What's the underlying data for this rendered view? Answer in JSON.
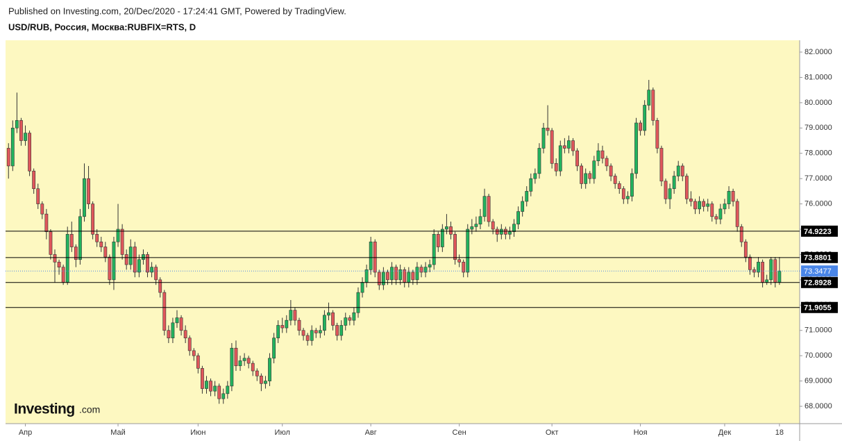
{
  "chart_data": {
    "type": "candlestick",
    "published": "Published on Investing.com, 20/Dec/2020 - 17:24:41 GMT, Powered by TradingView.",
    "title": "USD/RUB, Россия, Москва:RUBFIX=RTS, D",
    "logo": "Investing",
    "logo_suffix": ".com",
    "up_color": "#22b35e",
    "down_color": "#e0575b",
    "background": "#fdf8c1",
    "ylim": [
      67.315,
      82.467
    ],
    "xlim": [
      -0.7,
      187.8
    ],
    "yticks": [
      {
        "value": 68,
        "label": "68.0000"
      },
      {
        "value": 69,
        "label": "69.0000"
      },
      {
        "value": 70,
        "label": "70.0000"
      },
      {
        "value": 71,
        "label": "71.0000"
      },
      {
        "value": 72,
        "label": "72.0000"
      },
      {
        "value": 73,
        "label": "73.0000"
      },
      {
        "value": 74,
        "label": "74.0000"
      },
      {
        "value": 75,
        "label": "75.0000"
      },
      {
        "value": 76,
        "label": "76.0000"
      },
      {
        "value": 77,
        "label": "77.0000"
      },
      {
        "value": 78,
        "label": "78.0000"
      },
      {
        "value": 79,
        "label": "79.0000"
      },
      {
        "value": 80,
        "label": "80.0000"
      },
      {
        "value": 81,
        "label": "81.0000"
      },
      {
        "value": 82,
        "label": "82.0000"
      }
    ],
    "xticks": [
      {
        "value": 4,
        "label": "Апр"
      },
      {
        "value": 26,
        "label": "Май"
      },
      {
        "value": 45,
        "label": "Июн"
      },
      {
        "value": 65,
        "label": "Июл"
      },
      {
        "value": 86,
        "label": "Авг"
      },
      {
        "value": 107,
        "label": "Сен"
      },
      {
        "value": 129,
        "label": "Окт"
      },
      {
        "value": 150,
        "label": "Ноя"
      },
      {
        "value": 170,
        "label": "Дек"
      },
      {
        "value": 183,
        "label": "18"
      }
    ],
    "levels": [
      74.9223,
      73.8801,
      72.8928,
      71.9055
    ],
    "last": 73.3477,
    "last_color": "#4a86e8",
    "candles": [
      [
        78.2,
        78.4,
        77.0,
        77.5
      ],
      [
        77.5,
        79.3,
        77.3,
        79.0
      ],
      [
        79.0,
        80.4,
        78.8,
        79.3
      ],
      [
        79.3,
        79.4,
        78.3,
        78.5
      ],
      [
        78.5,
        79.1,
        78.3,
        78.8
      ],
      [
        78.8,
        78.9,
        77.1,
        77.3
      ],
      [
        77.3,
        77.4,
        76.4,
        76.6
      ],
      [
        76.6,
        76.8,
        75.8,
        76.0
      ],
      [
        76.0,
        76.1,
        75.4,
        75.6
      ],
      [
        75.6,
        75.8,
        74.6,
        74.9
      ],
      [
        74.9,
        75.0,
        73.8,
        74.0
      ],
      [
        74.0,
        74.2,
        72.9,
        73.7
      ],
      [
        73.7,
        73.8,
        73.2,
        73.5
      ],
      [
        73.5,
        73.6,
        72.8,
        72.9
      ],
      [
        72.9,
        75.1,
        72.8,
        74.8
      ],
      [
        74.8,
        75.3,
        74.1,
        74.3
      ],
      [
        74.3,
        74.4,
        73.5,
        73.8
      ],
      [
        73.8,
        75.8,
        73.6,
        75.5
      ],
      [
        75.5,
        77.6,
        75.3,
        77.0
      ],
      [
        77.0,
        77.5,
        75.8,
        76.0
      ],
      [
        76.0,
        76.1,
        74.6,
        74.8
      ],
      [
        74.8,
        75.0,
        74.3,
        74.5
      ],
      [
        74.5,
        74.7,
        74.1,
        74.3
      ],
      [
        74.3,
        74.5,
        73.7,
        73.9
      ],
      [
        73.9,
        74.0,
        72.8,
        73.0
      ],
      [
        73.0,
        74.7,
        72.6,
        74.5
      ],
      [
        74.5,
        76.0,
        74.3,
        75.0
      ],
      [
        75.0,
        75.2,
        73.8,
        74.0
      ],
      [
        74.0,
        74.2,
        73.4,
        73.6
      ],
      [
        73.6,
        74.6,
        73.4,
        74.3
      ],
      [
        74.3,
        74.5,
        73.1,
        73.3
      ],
      [
        73.3,
        74.0,
        73.1,
        73.8
      ],
      [
        73.8,
        74.2,
        73.6,
        74.0
      ],
      [
        74.0,
        74.1,
        73.1,
        73.3
      ],
      [
        73.3,
        73.7,
        73.1,
        73.5
      ],
      [
        73.5,
        73.6,
        72.8,
        73.0
      ],
      [
        73.0,
        73.1,
        72.3,
        72.5
      ],
      [
        72.5,
        72.6,
        70.8,
        71.0
      ],
      [
        71.0,
        71.2,
        70.5,
        70.7
      ],
      [
        70.7,
        71.5,
        70.5,
        71.3
      ],
      [
        71.3,
        71.8,
        71.1,
        71.5
      ],
      [
        71.5,
        71.6,
        70.8,
        71.0
      ],
      [
        71.0,
        71.2,
        70.5,
        70.7
      ],
      [
        70.7,
        70.8,
        70.0,
        70.2
      ],
      [
        70.2,
        70.3,
        69.8,
        70.0
      ],
      [
        70.0,
        70.1,
        69.3,
        69.5
      ],
      [
        69.5,
        69.6,
        68.5,
        68.7
      ],
      [
        68.7,
        69.2,
        68.5,
        69.0
      ],
      [
        69.0,
        69.1,
        68.4,
        68.6
      ],
      [
        68.6,
        69.0,
        68.4,
        68.8
      ],
      [
        68.8,
        68.9,
        68.1,
        68.3
      ],
      [
        68.3,
        68.7,
        68.1,
        68.5
      ],
      [
        68.5,
        69.0,
        68.3,
        68.8
      ],
      [
        68.8,
        70.5,
        68.6,
        70.3
      ],
      [
        70.3,
        70.6,
        69.4,
        69.6
      ],
      [
        69.6,
        70.0,
        69.4,
        69.8
      ],
      [
        69.8,
        70.1,
        69.6,
        69.9
      ],
      [
        69.9,
        70.0,
        69.5,
        69.7
      ],
      [
        69.7,
        69.8,
        69.2,
        69.4
      ],
      [
        69.4,
        69.5,
        69.0,
        69.2
      ],
      [
        69.2,
        69.3,
        68.6,
        68.9
      ],
      [
        68.9,
        69.2,
        68.7,
        69.0
      ],
      [
        69.0,
        70.1,
        68.8,
        69.9
      ],
      [
        69.9,
        70.9,
        69.7,
        70.7
      ],
      [
        70.7,
        71.4,
        70.5,
        71.2
      ],
      [
        71.2,
        71.5,
        70.9,
        71.1
      ],
      [
        71.1,
        71.6,
        70.9,
        71.4
      ],
      [
        71.4,
        72.2,
        71.2,
        71.8
      ],
      [
        71.8,
        71.9,
        71.2,
        71.4
      ],
      [
        71.4,
        71.5,
        70.8,
        71.0
      ],
      [
        71.0,
        71.1,
        70.6,
        70.8
      ],
      [
        70.8,
        70.9,
        70.4,
        70.6
      ],
      [
        70.6,
        71.2,
        70.4,
        71.0
      ],
      [
        71.0,
        71.1,
        70.7,
        70.9
      ],
      [
        70.9,
        71.2,
        70.7,
        71.0
      ],
      [
        71.0,
        71.8,
        70.8,
        71.6
      ],
      [
        71.6,
        72.1,
        71.4,
        71.7
      ],
      [
        71.7,
        71.8,
        71.0,
        71.2
      ],
      [
        71.2,
        71.3,
        70.6,
        70.8
      ],
      [
        70.8,
        71.4,
        70.6,
        71.2
      ],
      [
        71.2,
        71.7,
        71.0,
        71.5
      ],
      [
        71.5,
        71.6,
        71.2,
        71.4
      ],
      [
        71.4,
        71.9,
        71.2,
        71.7
      ],
      [
        71.7,
        72.7,
        71.5,
        72.5
      ],
      [
        72.5,
        73.1,
        72.3,
        72.9
      ],
      [
        72.9,
        73.6,
        72.7,
        73.4
      ],
      [
        73.4,
        74.7,
        73.2,
        74.5
      ],
      [
        74.5,
        74.6,
        73.1,
        73.3
      ],
      [
        73.3,
        73.4,
        72.6,
        72.8
      ],
      [
        72.8,
        73.5,
        72.6,
        73.3
      ],
      [
        73.3,
        73.4,
        72.8,
        73.0
      ],
      [
        73.0,
        73.7,
        72.8,
        73.5
      ],
      [
        73.5,
        73.6,
        72.8,
        73.0
      ],
      [
        73.0,
        73.6,
        72.8,
        73.4
      ],
      [
        73.4,
        73.5,
        72.7,
        72.9
      ],
      [
        72.9,
        73.5,
        72.7,
        73.3
      ],
      [
        73.3,
        73.4,
        72.8,
        73.0
      ],
      [
        73.0,
        73.7,
        72.8,
        73.5
      ],
      [
        73.5,
        73.6,
        73.1,
        73.3
      ],
      [
        73.3,
        73.7,
        73.1,
        73.5
      ],
      [
        73.5,
        73.8,
        73.3,
        73.6
      ],
      [
        73.6,
        75.0,
        73.4,
        74.8
      ],
      [
        74.8,
        74.9,
        74.1,
        74.3
      ],
      [
        74.3,
        75.2,
        74.1,
        75.0
      ],
      [
        75.0,
        75.6,
        74.8,
        75.1
      ],
      [
        75.1,
        75.3,
        74.6,
        74.8
      ],
      [
        74.8,
        74.9,
        73.6,
        73.8
      ],
      [
        73.8,
        74.0,
        73.5,
        73.7
      ],
      [
        73.7,
        73.8,
        73.1,
        73.3
      ],
      [
        73.3,
        75.2,
        73.1,
        75.0
      ],
      [
        75.0,
        75.4,
        74.8,
        75.1
      ],
      [
        75.1,
        75.5,
        74.9,
        75.2
      ],
      [
        75.2,
        75.8,
        75.0,
        75.5
      ],
      [
        75.5,
        76.6,
        75.3,
        76.3
      ],
      [
        76.3,
        76.4,
        75.1,
        75.3
      ],
      [
        75.3,
        75.4,
        74.8,
        75.0
      ],
      [
        75.0,
        75.1,
        74.5,
        74.8
      ],
      [
        74.8,
        75.2,
        74.6,
        75.0
      ],
      [
        75.0,
        75.1,
        74.6,
        74.8
      ],
      [
        74.8,
        75.1,
        74.6,
        74.9
      ],
      [
        74.9,
        75.4,
        74.7,
        75.2
      ],
      [
        75.2,
        75.9,
        75.0,
        75.7
      ],
      [
        75.7,
        76.3,
        75.5,
        76.1
      ],
      [
        76.1,
        76.7,
        75.9,
        76.5
      ],
      [
        76.5,
        77.2,
        76.3,
        77.0
      ],
      [
        77.0,
        77.4,
        76.8,
        77.2
      ],
      [
        77.2,
        78.4,
        77.0,
        78.2
      ],
      [
        78.2,
        79.2,
        78.0,
        79.0
      ],
      [
        79.0,
        79.9,
        78.7,
        78.9
      ],
      [
        78.9,
        79.0,
        77.4,
        77.6
      ],
      [
        77.6,
        77.8,
        77.1,
        77.3
      ],
      [
        77.3,
        78.5,
        77.1,
        78.3
      ],
      [
        78.3,
        78.6,
        78.0,
        78.2
      ],
      [
        78.2,
        78.7,
        78.0,
        78.5
      ],
      [
        78.5,
        78.6,
        77.9,
        78.1
      ],
      [
        78.1,
        78.2,
        77.3,
        77.5
      ],
      [
        77.5,
        77.6,
        76.6,
        76.8
      ],
      [
        76.8,
        77.4,
        76.6,
        77.2
      ],
      [
        77.2,
        77.3,
        76.8,
        77.0
      ],
      [
        77.0,
        77.9,
        76.8,
        77.7
      ],
      [
        77.7,
        78.4,
        77.5,
        78.1
      ],
      [
        78.1,
        78.3,
        77.6,
        77.8
      ],
      [
        77.8,
        77.9,
        77.3,
        77.5
      ],
      [
        77.5,
        77.6,
        76.9,
        77.1
      ],
      [
        77.1,
        77.2,
        76.6,
        76.8
      ],
      [
        76.8,
        76.9,
        76.4,
        76.6
      ],
      [
        76.6,
        76.7,
        76.0,
        76.2
      ],
      [
        76.2,
        76.5,
        76.0,
        76.3
      ],
      [
        76.3,
        77.4,
        76.1,
        77.2
      ],
      [
        77.2,
        79.4,
        77.0,
        79.2
      ],
      [
        79.2,
        79.3,
        78.7,
        78.9
      ],
      [
        78.9,
        80.1,
        78.7,
        79.9
      ],
      [
        79.9,
        80.9,
        79.7,
        80.5
      ],
      [
        80.5,
        80.6,
        79.1,
        79.3
      ],
      [
        79.3,
        79.4,
        78.0,
        78.2
      ],
      [
        78.2,
        78.3,
        76.7,
        76.9
      ],
      [
        76.9,
        77.0,
        76.0,
        76.2
      ],
      [
        76.2,
        76.8,
        75.8,
        76.6
      ],
      [
        76.6,
        77.3,
        76.4,
        77.1
      ],
      [
        77.1,
        77.7,
        76.9,
        77.5
      ],
      [
        77.5,
        77.6,
        76.9,
        77.1
      ],
      [
        77.1,
        77.2,
        76.0,
        76.2
      ],
      [
        76.2,
        76.5,
        75.9,
        76.1
      ],
      [
        76.1,
        76.2,
        75.6,
        75.8
      ],
      [
        75.8,
        76.3,
        75.6,
        76.1
      ],
      [
        76.1,
        76.2,
        75.7,
        75.9
      ],
      [
        75.9,
        76.2,
        75.7,
        76.0
      ],
      [
        76.0,
        76.1,
        75.3,
        75.5
      ],
      [
        75.5,
        75.6,
        75.2,
        75.4
      ],
      [
        75.4,
        76.0,
        75.2,
        75.8
      ],
      [
        75.8,
        76.2,
        75.6,
        76.0
      ],
      [
        76.0,
        76.7,
        75.8,
        76.5
      ],
      [
        76.5,
        76.6,
        75.9,
        76.1
      ],
      [
        76.1,
        76.2,
        74.9,
        75.1
      ],
      [
        75.1,
        75.2,
        74.3,
        74.5
      ],
      [
        74.5,
        74.6,
        73.7,
        73.9
      ],
      [
        73.9,
        74.0,
        73.2,
        73.4
      ],
      [
        73.4,
        73.5,
        73.1,
        73.3
      ],
      [
        73.3,
        73.9,
        73.1,
        73.7
      ],
      [
        73.7,
        73.8,
        72.7,
        72.9
      ],
      [
        72.9,
        73.2,
        72.8,
        73.0
      ],
      [
        73.0,
        73.9,
        72.8,
        73.8
      ],
      [
        73.8,
        73.9,
        72.7,
        72.9
      ],
      [
        72.9,
        73.9,
        72.8,
        73.35
      ]
    ]
  }
}
